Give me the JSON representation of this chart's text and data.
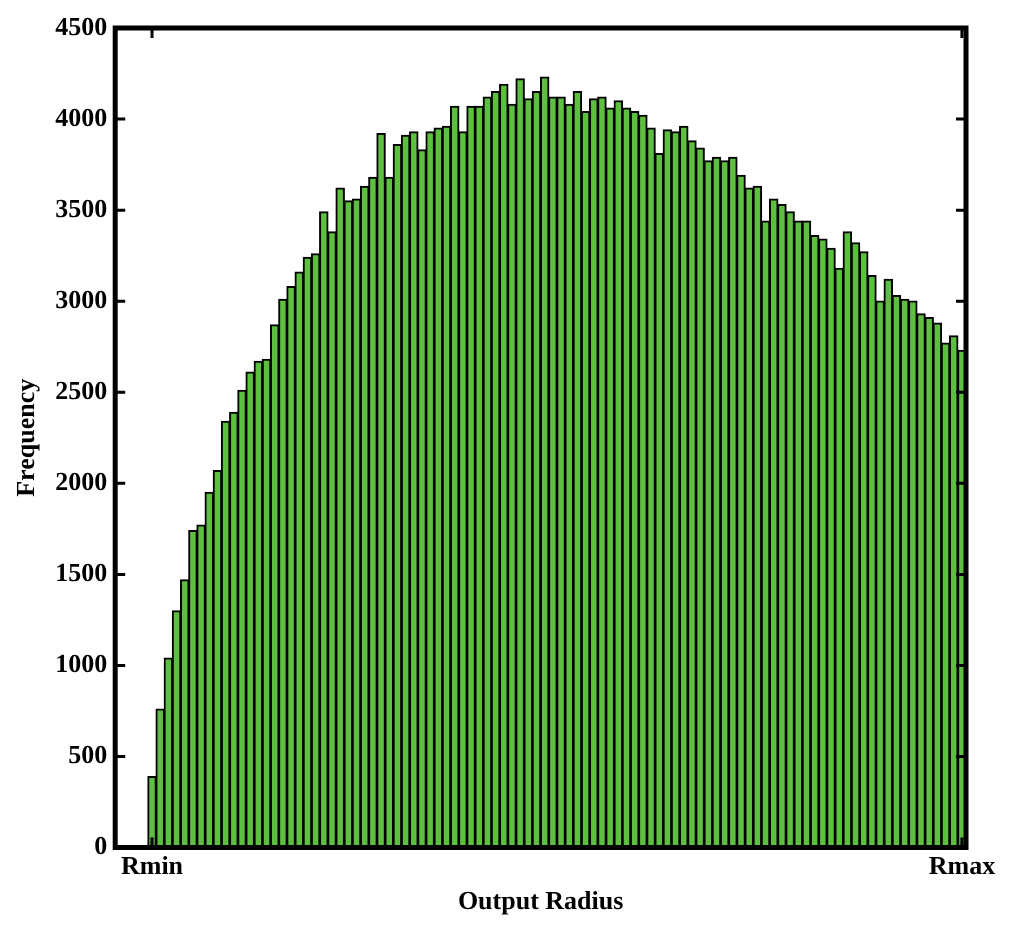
{
  "chart_data": {
    "type": "bar",
    "xlabel": "Output Radius",
    "ylabel": "Frequency",
    "color": "#5cbf3f",
    "categories": [
      null,
      null,
      null,
      null,
      "Rmin",
      null,
      null,
      null,
      null,
      null,
      null,
      null,
      null,
      null,
      null,
      null,
      null,
      null,
      null,
      null,
      null,
      null,
      null,
      null,
      null,
      null,
      null,
      null,
      null,
      null,
      null,
      null,
      null,
      null,
      null,
      null,
      null,
      null,
      null,
      null,
      null,
      null,
      null,
      null,
      null,
      null,
      null,
      null,
      null,
      null,
      null,
      null,
      null,
      null,
      null,
      null,
      null,
      null,
      null,
      null,
      null,
      null,
      null,
      null,
      null,
      null,
      null,
      null,
      null,
      null,
      null,
      null,
      null,
      null,
      null,
      null,
      null,
      null,
      null,
      null,
      null,
      null,
      null,
      null,
      null,
      null,
      null,
      null,
      null,
      null,
      null,
      null,
      null,
      null,
      null,
      null,
      null,
      null,
      null,
      null,
      null,
      null,
      null,
      "Rmax"
    ],
    "values": [
      null,
      null,
      null,
      null,
      390,
      760,
      1040,
      1300,
      1470,
      1740,
      1770,
      1950,
      2070,
      2340,
      2390,
      2510,
      2610,
      2670,
      2680,
      2870,
      3010,
      3080,
      3160,
      3240,
      3260,
      3490,
      3380,
      3620,
      3550,
      3560,
      3630,
      3680,
      3920,
      3680,
      3860,
      3910,
      3930,
      3830,
      3930,
      3950,
      3960,
      4070,
      3930,
      4070,
      4070,
      4120,
      4150,
      4190,
      4080,
      4220,
      4110,
      4150,
      4230,
      4120,
      4120,
      4080,
      4150,
      4040,
      4110,
      4120,
      4060,
      4100,
      4060,
      4040,
      4020,
      3950,
      3810,
      3940,
      3930,
      3960,
      3880,
      3840,
      3770,
      3790,
      3770,
      3790,
      3690,
      3620,
      3630,
      3440,
      3560,
      3530,
      3490,
      3440,
      3440,
      3360,
      3340,
      3290,
      3180,
      3380,
      3320,
      3270,
      3140,
      3000,
      3120,
      3030,
      3010,
      3000,
      2930,
      2910,
      2880,
      2770,
      2810,
      2730
    ],
    "ylim": [
      0,
      4500
    ],
    "yticks": [
      0,
      500,
      1000,
      1500,
      2000,
      2500,
      3000,
      3500,
      4000,
      4500
    ],
    "grid": false,
    "legend": false
  }
}
